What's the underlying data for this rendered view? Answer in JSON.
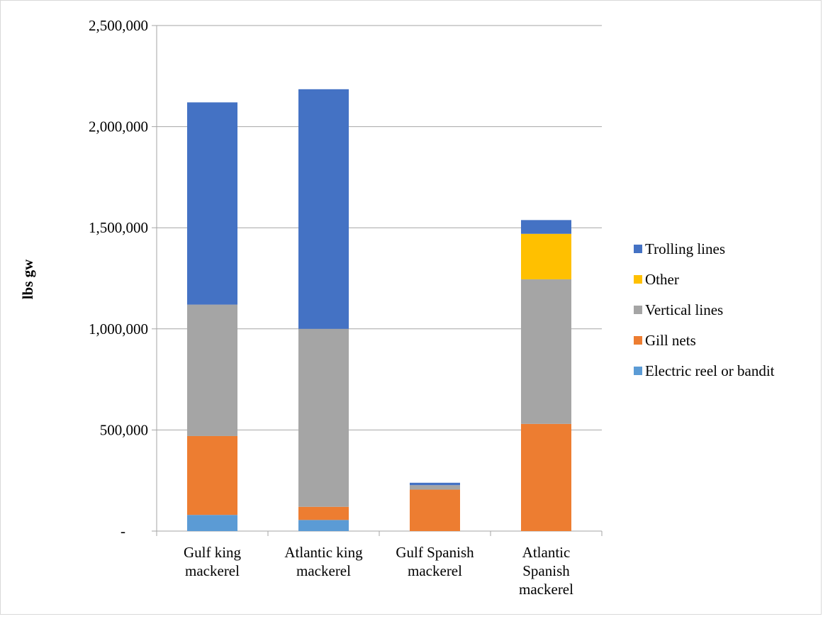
{
  "chart_data": {
    "type": "bar",
    "stacked": true,
    "title": "",
    "xlabel": "",
    "ylabel": "lbs gw",
    "ylim": [
      0,
      2500000
    ],
    "yticks": [
      0,
      500000,
      1000000,
      1500000,
      2000000,
      2500000
    ],
    "ytick_labels": [
      "-",
      "500,000",
      "1,000,000",
      "1,500,000",
      "2,000,000",
      "2,500,000"
    ],
    "grid": true,
    "legend_position": "right",
    "categories": [
      [
        "Gulf king",
        "mackerel"
      ],
      [
        "Atlantic king",
        "mackerel"
      ],
      [
        "Gulf Spanish",
        "mackerel"
      ],
      [
        "Atlantic",
        "Spanish",
        "mackerel"
      ]
    ],
    "series": [
      {
        "name": "Electric reel or bandit",
        "color": "#5b9bd5",
        "values": [
          80000,
          55000,
          0,
          0
        ]
      },
      {
        "name": "Gill nets",
        "color": "#ed7d31",
        "values": [
          390000,
          65000,
          205000,
          530000
        ]
      },
      {
        "name": "Vertical lines",
        "color": "#a5a5a5",
        "values": [
          650000,
          880000,
          22000,
          715000
        ]
      },
      {
        "name": "Other",
        "color": "#ffc000",
        "values": [
          0,
          0,
          0,
          225000
        ]
      },
      {
        "name": "Trolling lines",
        "color": "#4472c4",
        "values": [
          1000000,
          1185000,
          12000,
          68000
        ]
      }
    ]
  }
}
